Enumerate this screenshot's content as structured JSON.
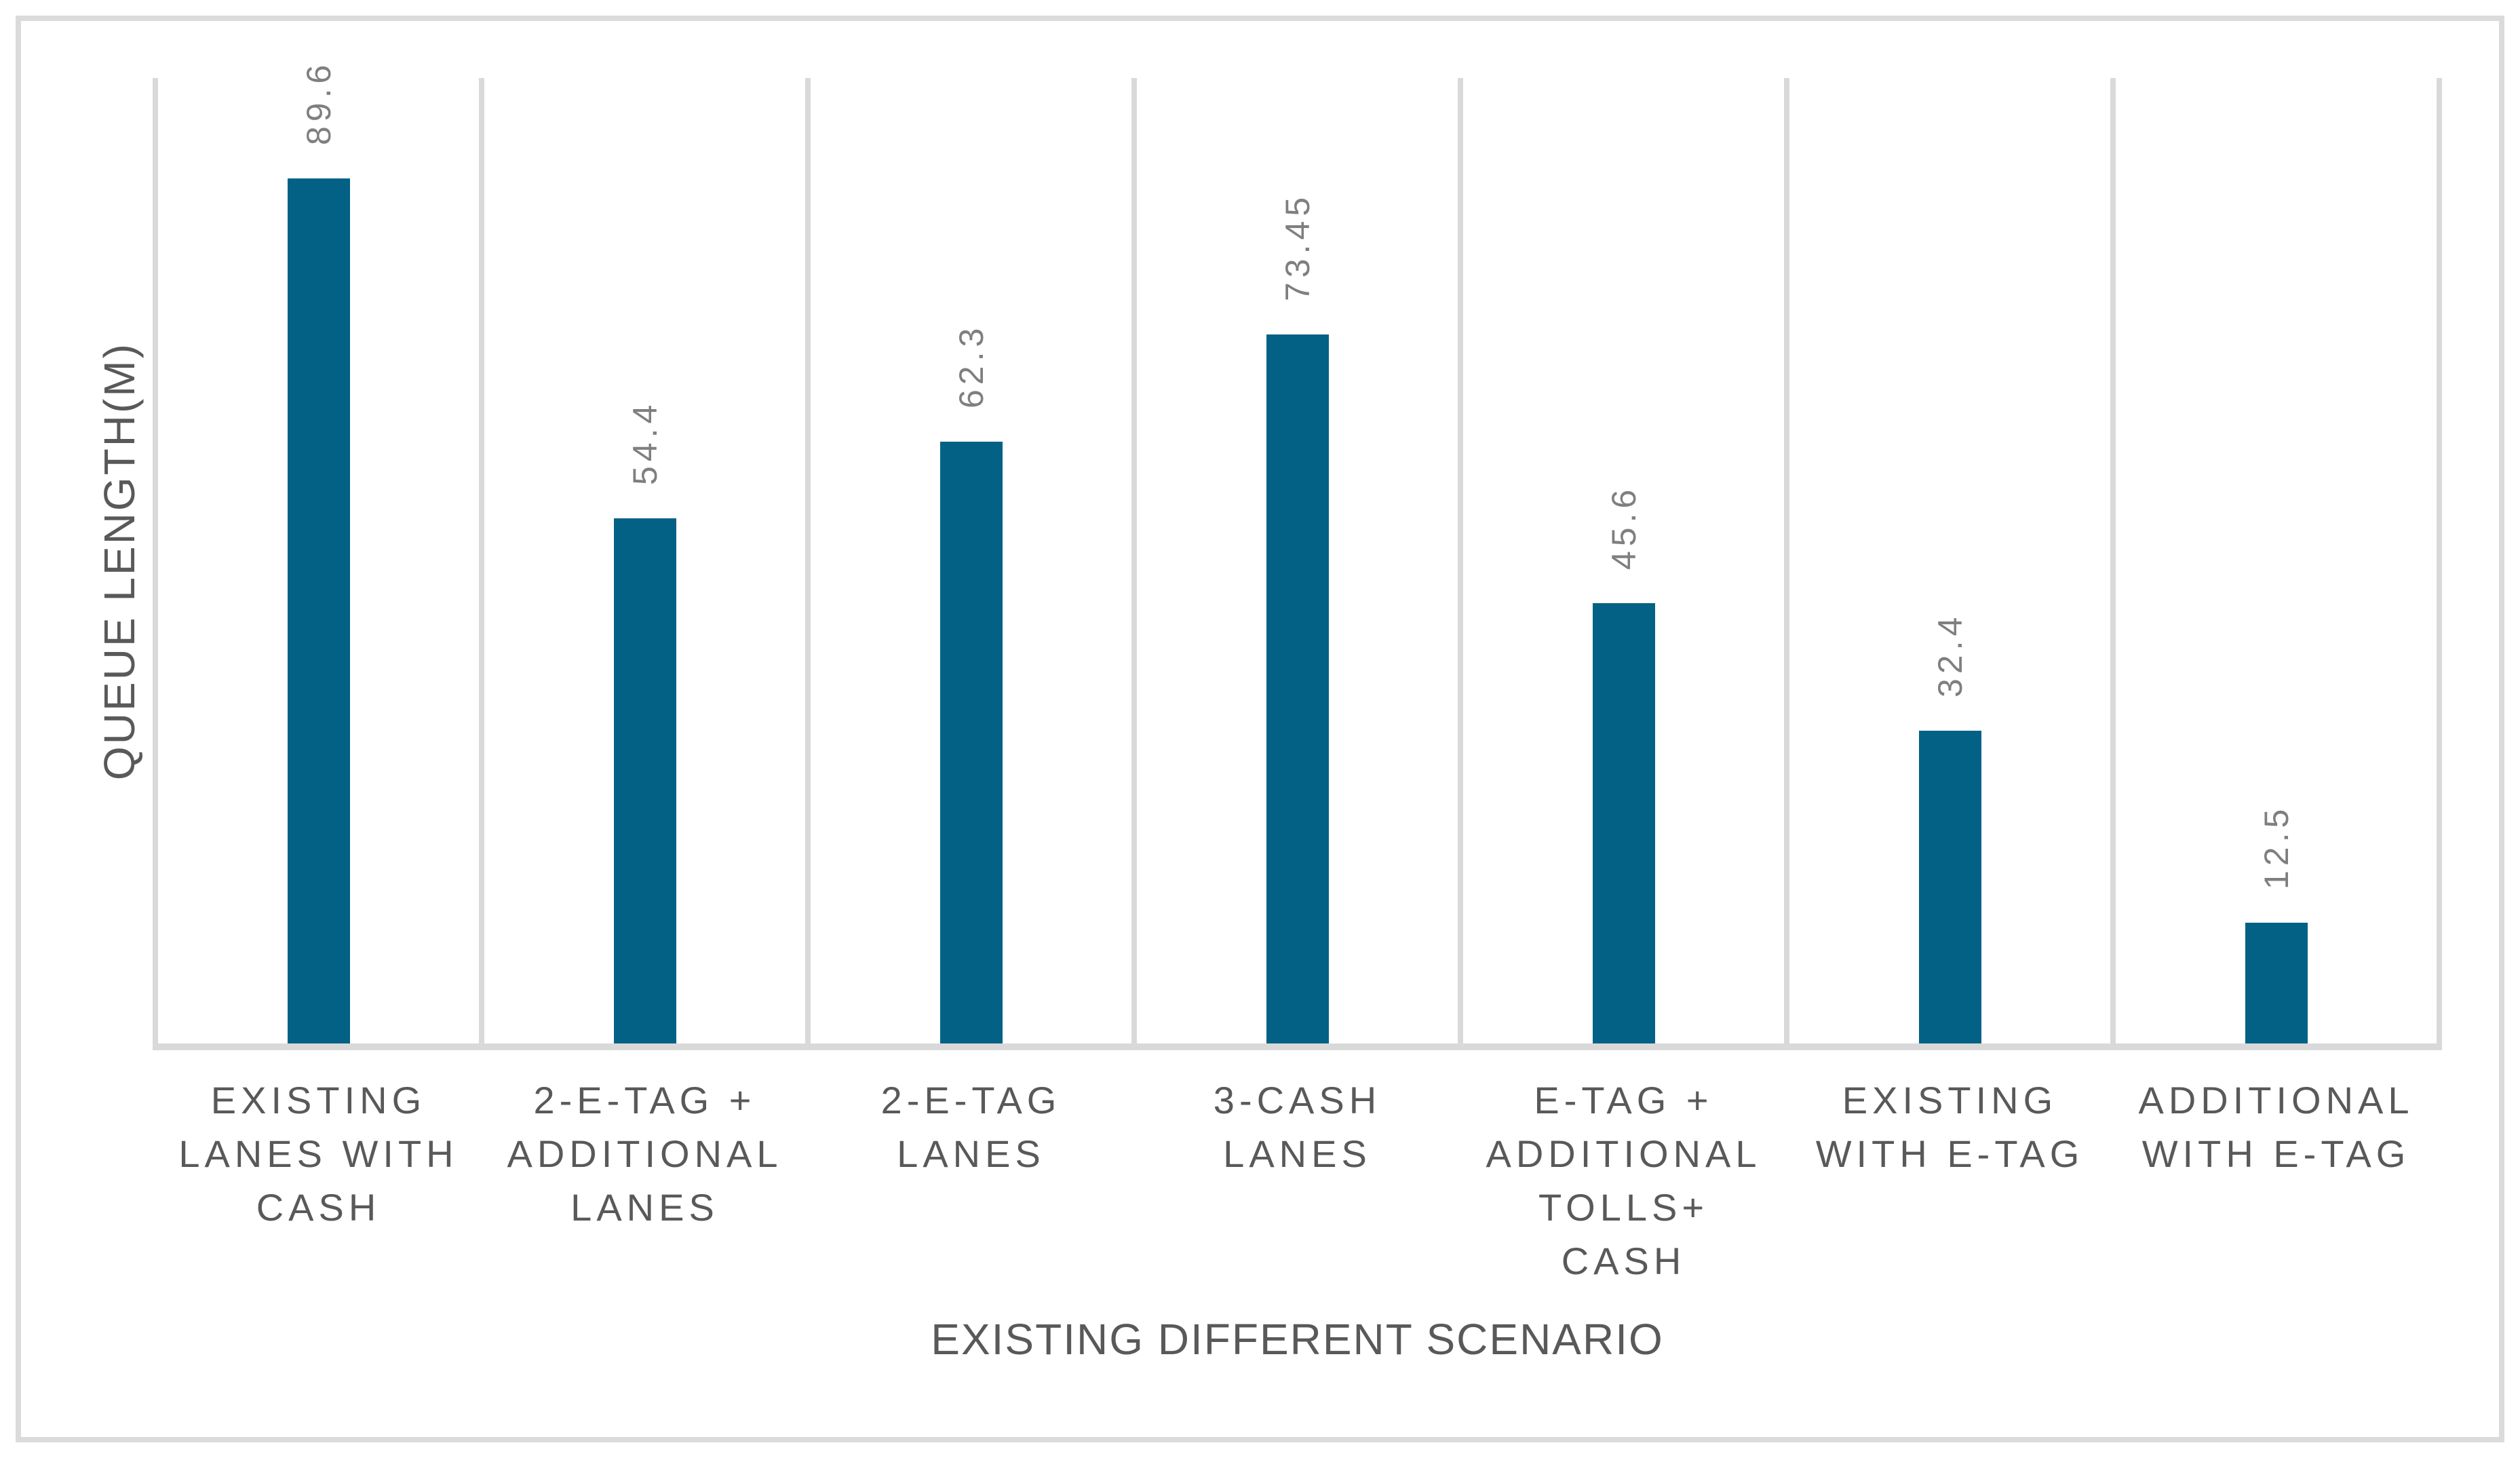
{
  "chart_data": {
    "type": "bar",
    "title": "",
    "categories": [
      "EXISTING\nLANES WITH\nCASH",
      "2-E-TAG +\nADDITIONAL\nLANES",
      "2-E-TAG\nLANES",
      "3-CASH\nLANES",
      "E-TAG +\nADDITIONAL\nTOLLS+\nCASH",
      "EXISTING\nWITH E-TAG",
      "ADDITIONAL\nWITH E-TAG"
    ],
    "values": [
      89.6,
      54.4,
      62.3,
      73.45,
      45.6,
      32.4,
      12.5
    ],
    "value_labels": [
      "89.6",
      "54.4",
      "62.3",
      "73.45",
      "45.6",
      "32.4",
      "12.5"
    ],
    "xlabel": "EXISTING DIFFERENT SCENARIO",
    "ylabel": "QUEUE LENGTH(M)",
    "ylim": [
      0,
      100
    ],
    "grid": "vertical category separators only",
    "legend_position": "none",
    "colors": {
      "bar": "#036186",
      "value_label": "#7F7F7F",
      "axis_text": "#595959",
      "gridline": "#D9D9D9",
      "axis_line": "#D9D9D9",
      "border": "#DBDBDB",
      "background": "#FFFFFF"
    }
  }
}
